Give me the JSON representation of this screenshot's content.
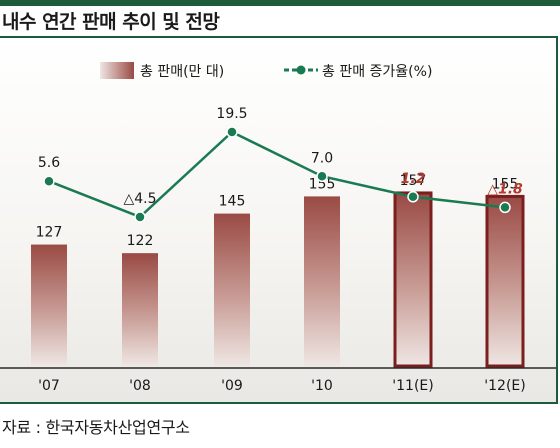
{
  "title": "내수 연간 판매 추이 및 전망",
  "source": "자료 : 한국자동차산업연구소",
  "chart_data": {
    "type": "bar",
    "categories": [
      "'07",
      "'08",
      "'09",
      "'10",
      "'11(E)",
      "'12(E)"
    ],
    "series": [
      {
        "name": "총 판매(만 대)",
        "type": "bar",
        "values": [
          127,
          122,
          145,
          155,
          157,
          155
        ],
        "labels": [
          "127",
          "122",
          "145",
          "155",
          "157",
          "155"
        ],
        "color": "#9a4a44",
        "estimate_outline_color": "#7a1e1e"
      },
      {
        "name": "총 판매 증가율(%)",
        "type": "line",
        "values": [
          5.6,
          -4.5,
          19.5,
          7.0,
          1.2,
          -1.8
        ],
        "labels": [
          "5.6",
          "△4.5",
          "19.5",
          "7.0",
          "1.2",
          "△1.8"
        ],
        "color": "#1a7a52",
        "estimate_label_color": "#b23a2e"
      }
    ],
    "estimated_categories": [
      "'11(E)",
      "'12(E)"
    ],
    "legend_position": "top"
  }
}
